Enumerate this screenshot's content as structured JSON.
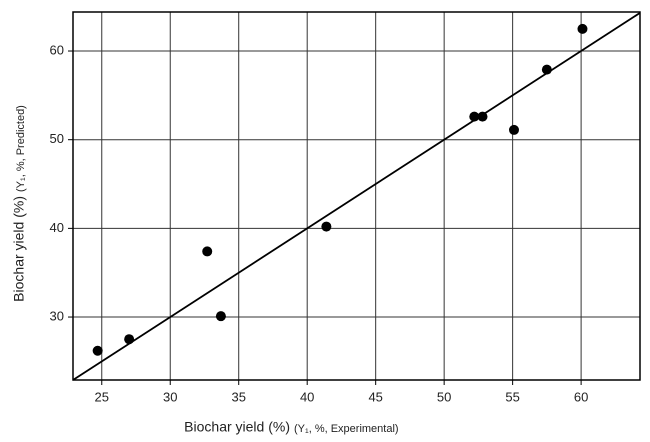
{
  "chart_data": {
    "type": "scatter",
    "x_label": "Biochar yield (%)",
    "x_label_note": "(Y₁, %, Experimental)",
    "y_label": "Biochar yield (%)",
    "y_label_note": "(Y₁, %, Predicted)",
    "series": [
      {
        "color": "#000000",
        "x": [
          24.7,
          27.0,
          32.7,
          33.7,
          41.4,
          52.2,
          52.8,
          55.1,
          57.5,
          60.1
        ],
        "values": [
          26.2,
          27.5,
          37.4,
          30.1,
          40.2,
          52.6,
          52.6,
          51.1,
          57.9,
          62.5
        ]
      }
    ],
    "xlim": [
      22.9,
      64.3
    ],
    "ylim": [
      22.9,
      64.4
    ],
    "xticks": [
      25,
      30,
      35,
      40,
      45,
      50,
      55,
      60
    ],
    "yticks": [
      30,
      40,
      50,
      60
    ],
    "grid": true
  }
}
